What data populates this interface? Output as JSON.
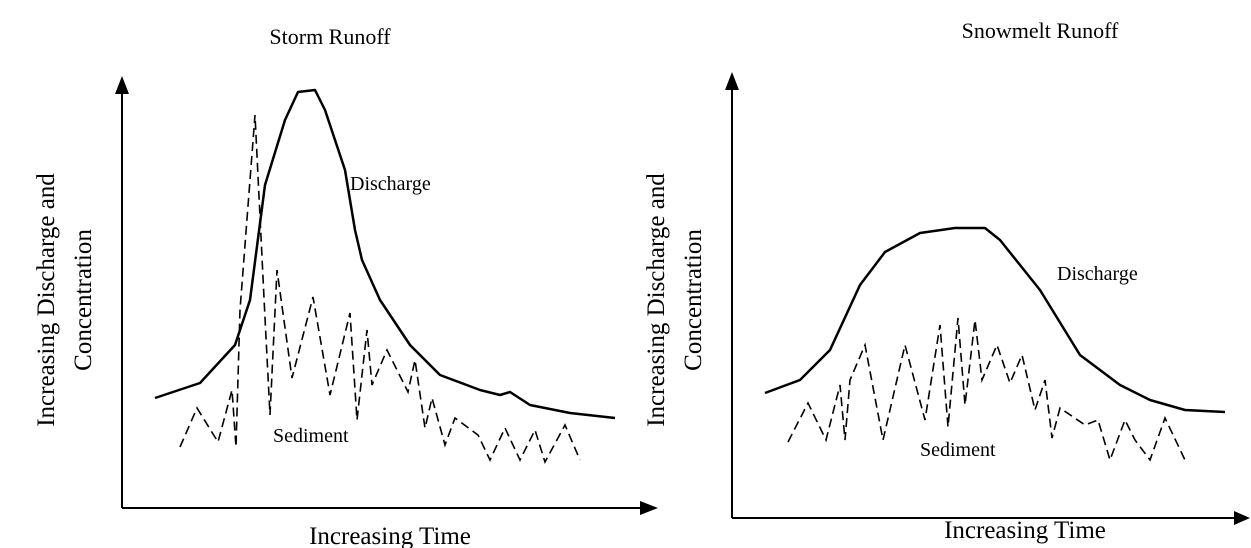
{
  "panels": [
    {
      "title": "Storm Runoff",
      "y_label": [
        "Increasing Discharge and",
        "Concentration"
      ],
      "x_label": "Increasing Time",
      "discharge_label": "Discharge",
      "sediment_label": "Sediment"
    },
    {
      "title": "Snowmelt Runoff",
      "y_label": [
        "Increasing Discharge and",
        "Concentration"
      ],
      "x_label": "Increasing Time",
      "discharge_label": "Discharge",
      "sediment_label": "Sediment"
    }
  ]
}
